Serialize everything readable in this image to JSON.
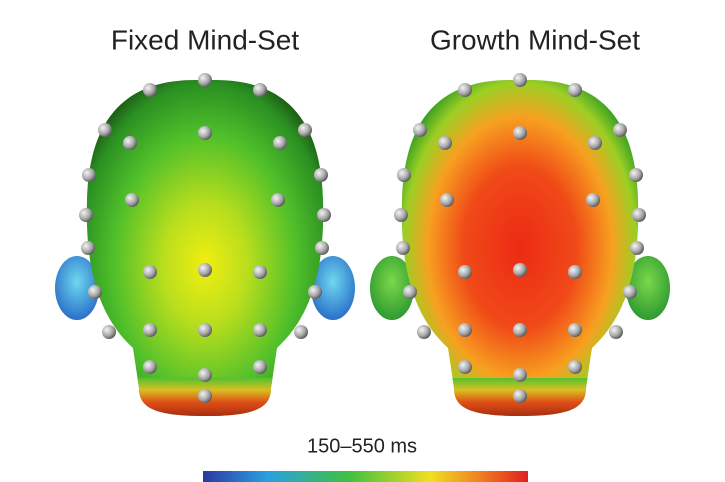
{
  "panels": [
    {
      "title": "Fixed Mind-Set"
    },
    {
      "title": "Growth Mind-Set"
    }
  ],
  "colorbar": {
    "label": "150–550 ms"
  }
}
